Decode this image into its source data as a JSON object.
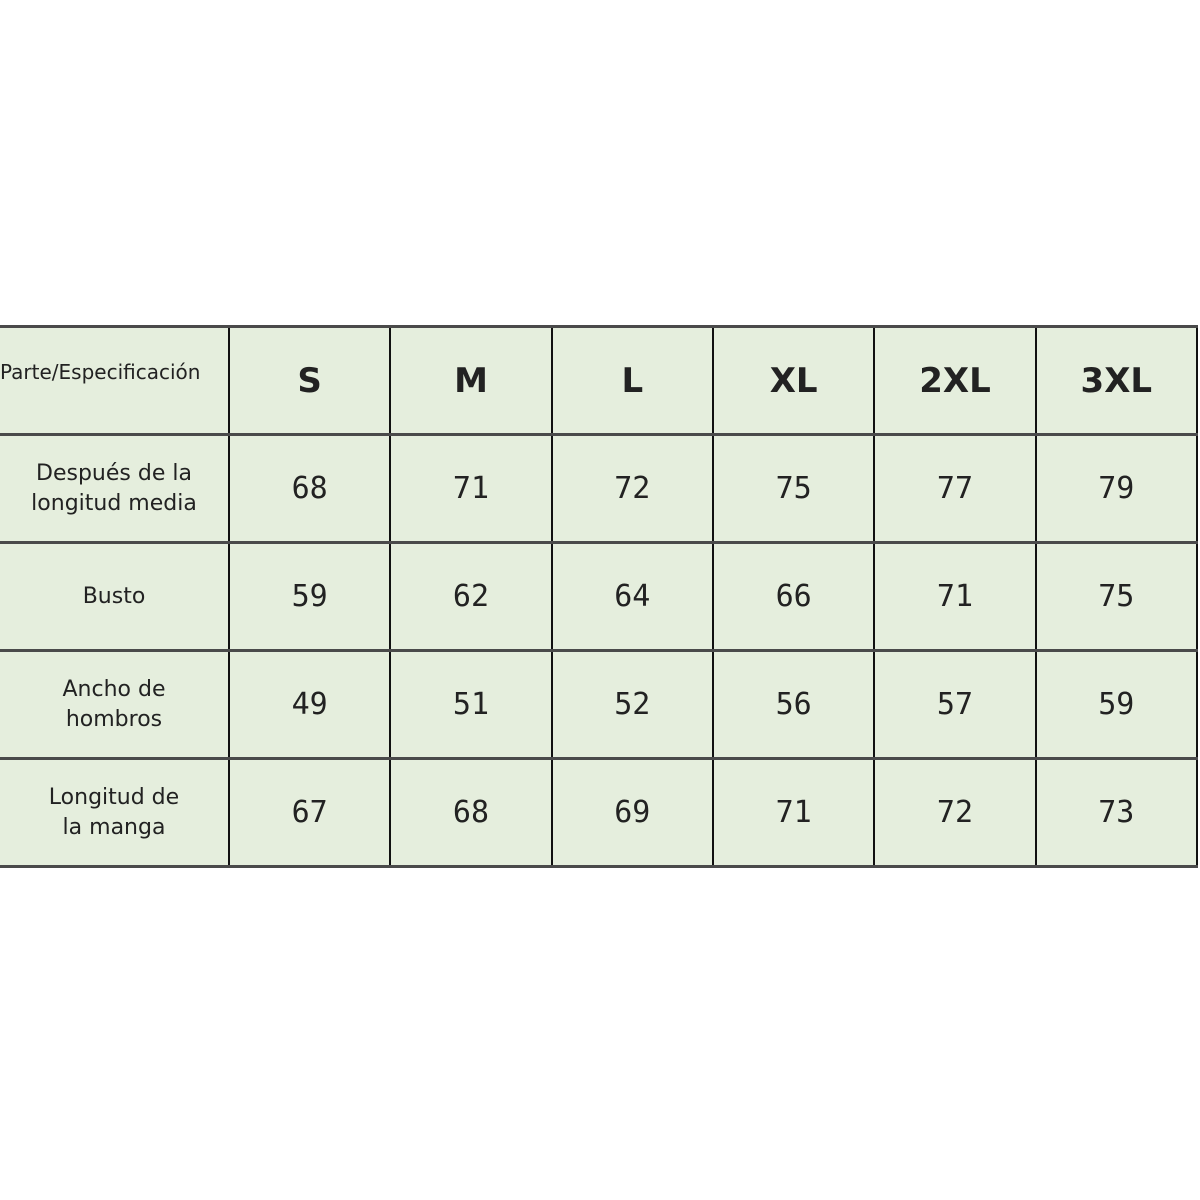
{
  "table": {
    "corner_label": "Parte/Especificación",
    "sizes": [
      "S",
      "M",
      "L",
      "XL",
      "2XL",
      "3XL"
    ],
    "rows": [
      {
        "label": "Después de la longitud media",
        "values": [
          "68",
          "71",
          "72",
          "75",
          "77",
          "79"
        ]
      },
      {
        "label": "Busto",
        "values": [
          "59",
          "62",
          "64",
          "66",
          "71",
          "75"
        ]
      },
      {
        "label": "Ancho de hombros",
        "values": [
          "49",
          "51",
          "52",
          "56",
          "57",
          "59"
        ]
      },
      {
        "label": "Longitud de la manga",
        "values": [
          "67",
          "68",
          "69",
          "71",
          "72",
          "73"
        ]
      }
    ],
    "colors": {
      "cell_background": "#e5eedd",
      "grid_line": "#111111"
    }
  }
}
